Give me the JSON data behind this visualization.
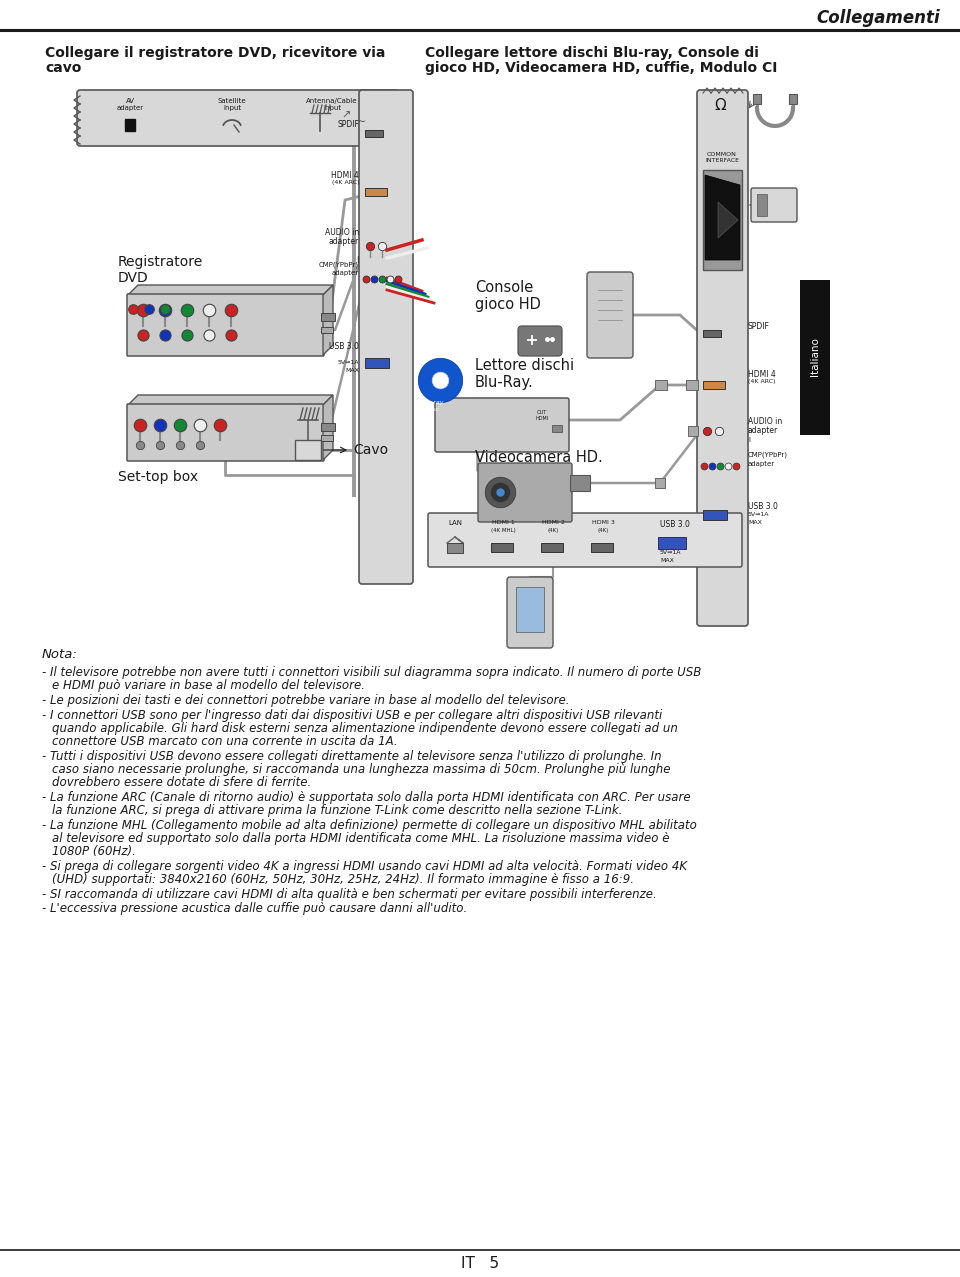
{
  "page_title": "Collegamenti",
  "s1_l1": "Collegare il registratore DVD, ricevitore via",
  "s1_l2": "cavo",
  "s2_l1": "Collegare lettore dischi Blu-ray, Console di",
  "s2_l2": "gioco HD, Videocamera HD, cuffie, Modulo CI",
  "label_reg_dvd": "Registratore\nDVD",
  "label_set_top": "Set-top box",
  "label_cavo": "Cavo",
  "label_console": "Console\ngioco HD",
  "label_lettore": "Lettore dischi\nBlu-Ray.",
  "label_videocam": "Videocamera HD.",
  "nota_title": "Nota:",
  "note_items": [
    "Il televisore potrebbe non avere tutti i connettori visibili sul diagramma sopra indicato. Il numero di porte USB\ne HDMI può variare in base al modello del televisore.",
    "Le posizioni dei tasti e dei connettori potrebbe variare in base al modello del televisore.",
    "I connettori USB sono per l'ingresso dati dai dispositivi USB e per collegare altri dispositivi USB rilevanti\nquando applicabile. Gli hard disk esterni senza alimentazione indipendente devono essere collegati ad un\nconnettore USB marcato con una corrente in uscita da 1A.",
    "Tutti i dispositivi USB devono essere collegati direttamente al televisore senza l'utilizzo di prolunghe. In\ncaso siano necessarie prolunghe, si raccomanda una lunghezza massima di 50cm. Prolunghe più lunghe\ndovrebbero essere dotate di sfere di ferrite.",
    "La funzione ARC (Canale di ritorno audio) è supportata solo dalla porta HDMI identificata con ARC. Per usare\nla funzione ARC, si prega di attivare prima la funzione T-Link come descritto nella sezione T-Link.",
    "La funzione MHL (Collegamento mobile ad alta definizione) permette di collegare un dispositivo MHL abilitato\nal televisore ed supportato solo dalla porta HDMI identificata come MHL. La risoluzione massima video è\n1080P (60Hz).",
    "Si prega di collegare sorgenti video 4K a ingressi HDMI usando cavi HDMI ad alta velocità. Formati video 4K\n(UHD) supportati: 3840x2160 (60Hz, 50Hz, 30Hz, 25Hz, 24Hz). Il formato immagine è fisso a 16:9.",
    "SI raccomanda di utilizzare cavi HDMI di alta qualità e ben schermati per evitare possibili interferenze.",
    "L'eccessiva pressione acustica dalle cuffie può causare danni all'udito."
  ],
  "footer_text": "IT   5",
  "bg": "#ffffff",
  "fg": "#1a1a1a",
  "panel_fc": "#d8d8d8",
  "panel_ec": "#555555",
  "cable": "#999999",
  "usb_blue": "#3355bb",
  "hdmi_gray": "#666666",
  "italiano_bg": "#111111"
}
